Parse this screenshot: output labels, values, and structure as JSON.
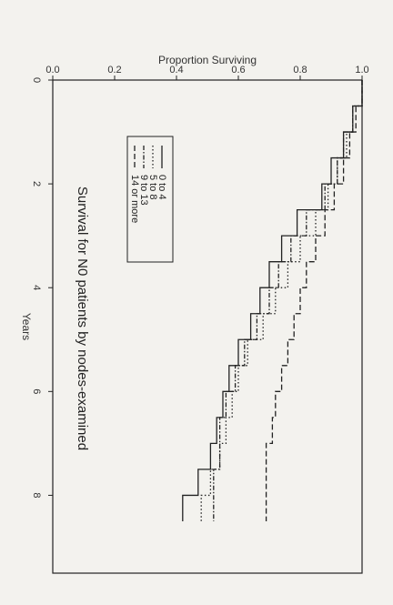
{
  "chart_data": {
    "type": "line",
    "title": "Survival for N0 patients by nodes-examined",
    "xlabel": "Years",
    "ylabel": "Proportion Surviving",
    "xlim": [
      0,
      9.5
    ],
    "ylim": [
      0,
      1.0
    ],
    "x_ticks": [
      "0",
      "2",
      "4",
      "6",
      "8"
    ],
    "x_tick_values": [
      0,
      2,
      4,
      6,
      8
    ],
    "y_ticks": [
      "0.0",
      "0.2",
      "0.4",
      "0.6",
      "0.8",
      "1.0"
    ],
    "y_tick_values": [
      0,
      0.2,
      0.4,
      0.6,
      0.8,
      1.0
    ],
    "rotation": "90 degrees clockwise",
    "grid": false,
    "legend_position": "top-left",
    "series": [
      {
        "name": "0 to 4",
        "style": "solid",
        "x": [
          0,
          0.5,
          1.0,
          1.5,
          2.0,
          2.5,
          3.0,
          3.5,
          4.0,
          4.5,
          5.0,
          5.5,
          6.0,
          6.5,
          7.0,
          7.5,
          8.0,
          8.5
        ],
        "y": [
          1.0,
          0.97,
          0.94,
          0.9,
          0.87,
          0.79,
          0.74,
          0.7,
          0.67,
          0.64,
          0.6,
          0.57,
          0.55,
          0.53,
          0.51,
          0.47,
          0.42,
          0.42
        ]
      },
      {
        "name": "5 to 8",
        "style": "dotted",
        "x": [
          0,
          0.5,
          1.0,
          1.5,
          2.0,
          2.5,
          3.0,
          3.5,
          4.0,
          4.5,
          5.0,
          5.5,
          6.0,
          6.5,
          7.0,
          7.5,
          8.0,
          8.5
        ],
        "y": [
          1.0,
          0.97,
          0.95,
          0.92,
          0.89,
          0.85,
          0.8,
          0.76,
          0.72,
          0.68,
          0.63,
          0.6,
          0.58,
          0.56,
          0.54,
          0.51,
          0.48,
          0.48
        ]
      },
      {
        "name": "9 to 13",
        "style": "dashed-dot",
        "x": [
          0,
          0.5,
          1.0,
          1.5,
          2.0,
          2.5,
          3.0,
          3.5,
          4.0,
          4.5,
          5.0,
          5.5,
          6.0,
          6.5,
          7.0,
          7.5,
          8.0,
          8.5
        ],
        "y": [
          1.0,
          0.97,
          0.94,
          0.92,
          0.88,
          0.82,
          0.77,
          0.73,
          0.7,
          0.66,
          0.62,
          0.59,
          0.56,
          0.54,
          0.54,
          0.52,
          0.52,
          0.52
        ]
      },
      {
        "name": "14 or more",
        "style": "dashed",
        "x": [
          0,
          0.5,
          1.0,
          1.5,
          2.0,
          2.5,
          3.0,
          3.5,
          4.0,
          4.5,
          5.0,
          5.5,
          6.0,
          6.5,
          7.0,
          7.5,
          8.0,
          8.5
        ],
        "y": [
          1.0,
          0.98,
          0.96,
          0.94,
          0.91,
          0.88,
          0.85,
          0.82,
          0.8,
          0.78,
          0.76,
          0.74,
          0.72,
          0.71,
          0.69,
          0.69,
          0.69,
          0.69
        ]
      }
    ]
  }
}
